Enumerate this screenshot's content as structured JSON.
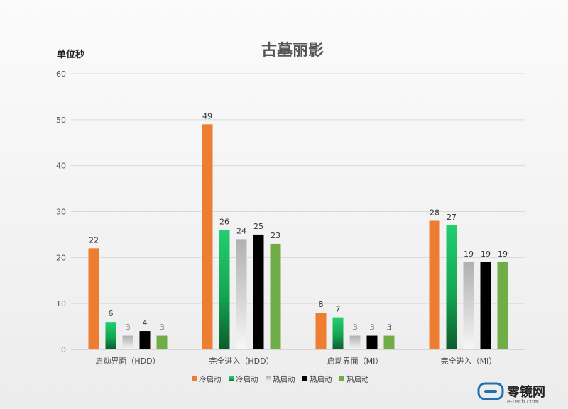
{
  "chart_data": {
    "type": "bar",
    "title": "古墓丽影",
    "ylabel": "单位秒",
    "xlabel": "",
    "ylim": [
      0,
      60
    ],
    "yticks": [
      0,
      10,
      20,
      30,
      40,
      50,
      60
    ],
    "grid": true,
    "legend_position": "bottom",
    "categories": [
      "启动界面（HDD）",
      "完全进入（HDD）",
      "启动界面（MI）",
      "完全进入（MI）"
    ],
    "series": [
      {
        "name": "冷启动",
        "color": "#ED7D31",
        "style": "solid",
        "values": [
          22,
          49,
          8,
          28
        ]
      },
      {
        "name": "冷启动",
        "color": "#1DBE66",
        "style": "green-gradient",
        "values": [
          6,
          26,
          7,
          27
        ]
      },
      {
        "name": "热启动",
        "color": "#B5B5B5",
        "style": "gray-gradient",
        "values": [
          3,
          24,
          3,
          19
        ]
      },
      {
        "name": "热启动",
        "color": "#000000",
        "style": "solid",
        "values": [
          4,
          25,
          3,
          19
        ]
      },
      {
        "name": "热启动",
        "color": "#70AD47",
        "style": "solid",
        "values": [
          3,
          23,
          3,
          19
        ]
      }
    ]
  },
  "watermark": {
    "brand": "零镜网",
    "site": "e-tech.com",
    "icon": "speech-bubble-logo-icon"
  }
}
